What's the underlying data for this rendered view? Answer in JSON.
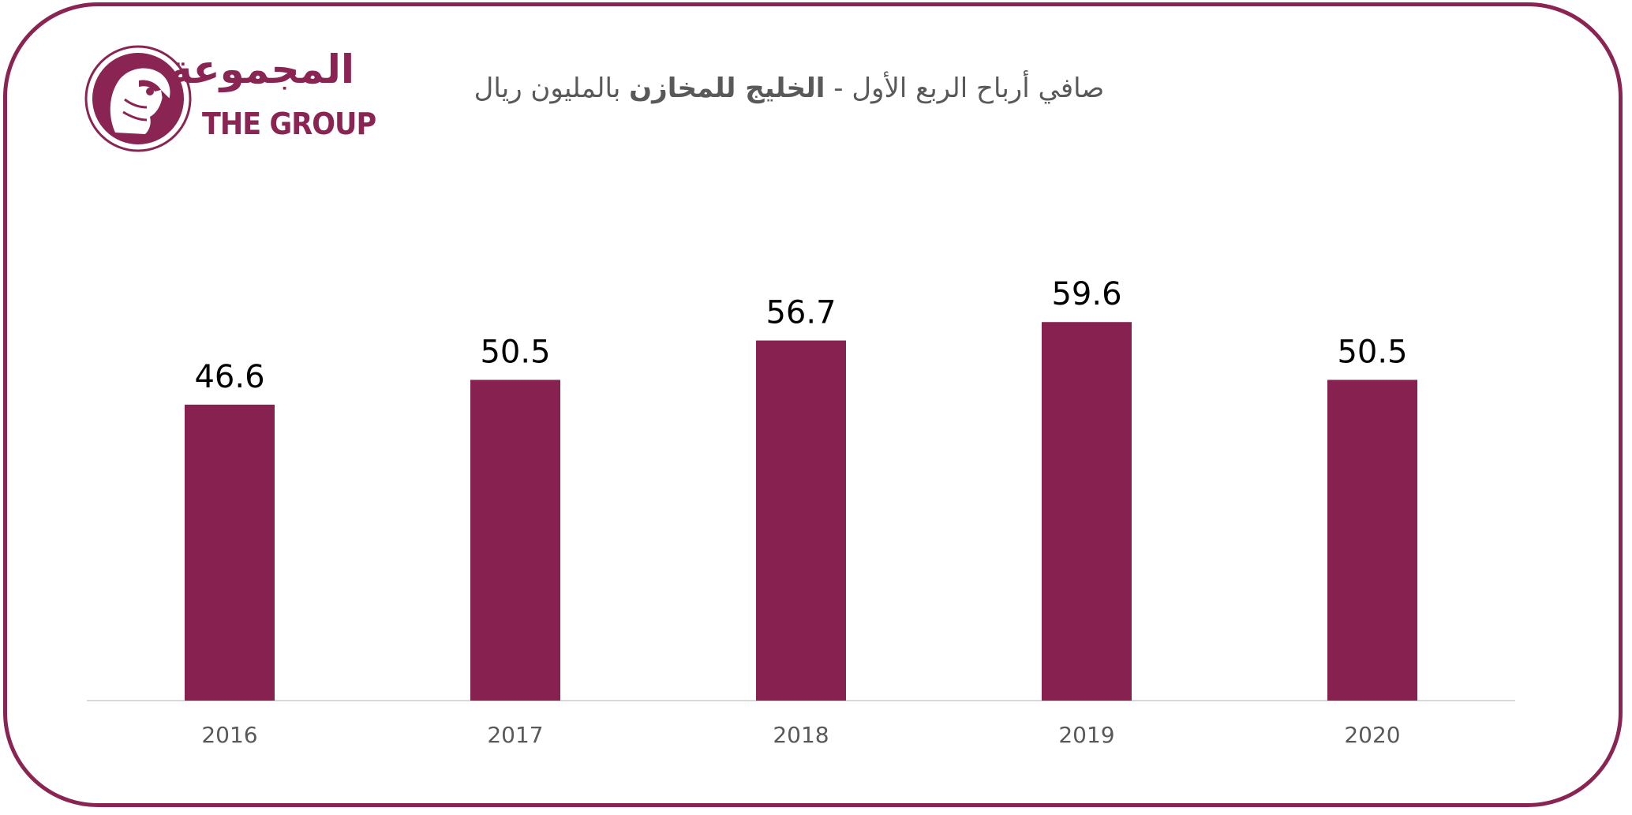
{
  "brand": {
    "name_ar": "المجموعة",
    "name_en": "THE GROUP",
    "color": "#8a2452"
  },
  "chart_data": {
    "type": "bar",
    "title_part1": "صافي أرباح الربع الأول - ",
    "title_bold": "الخليج للمخازن",
    "title_part2": " بالمليون ريال",
    "categories": [
      "2016",
      "2017",
      "2018",
      "2019",
      "2020"
    ],
    "values": [
      46.6,
      50.5,
      56.7,
      59.6,
      50.5
    ],
    "data_labels": [
      "46.6",
      "50.5",
      "56.7",
      "59.6",
      "50.5"
    ],
    "xlabel": "",
    "ylabel": "",
    "ylim": [
      0,
      68
    ],
    "grid": false,
    "legend": "none",
    "bar_color": "#87214f",
    "axis_color": "#d9d9d9",
    "tick_color": "#595959",
    "label_color": "#000000"
  }
}
